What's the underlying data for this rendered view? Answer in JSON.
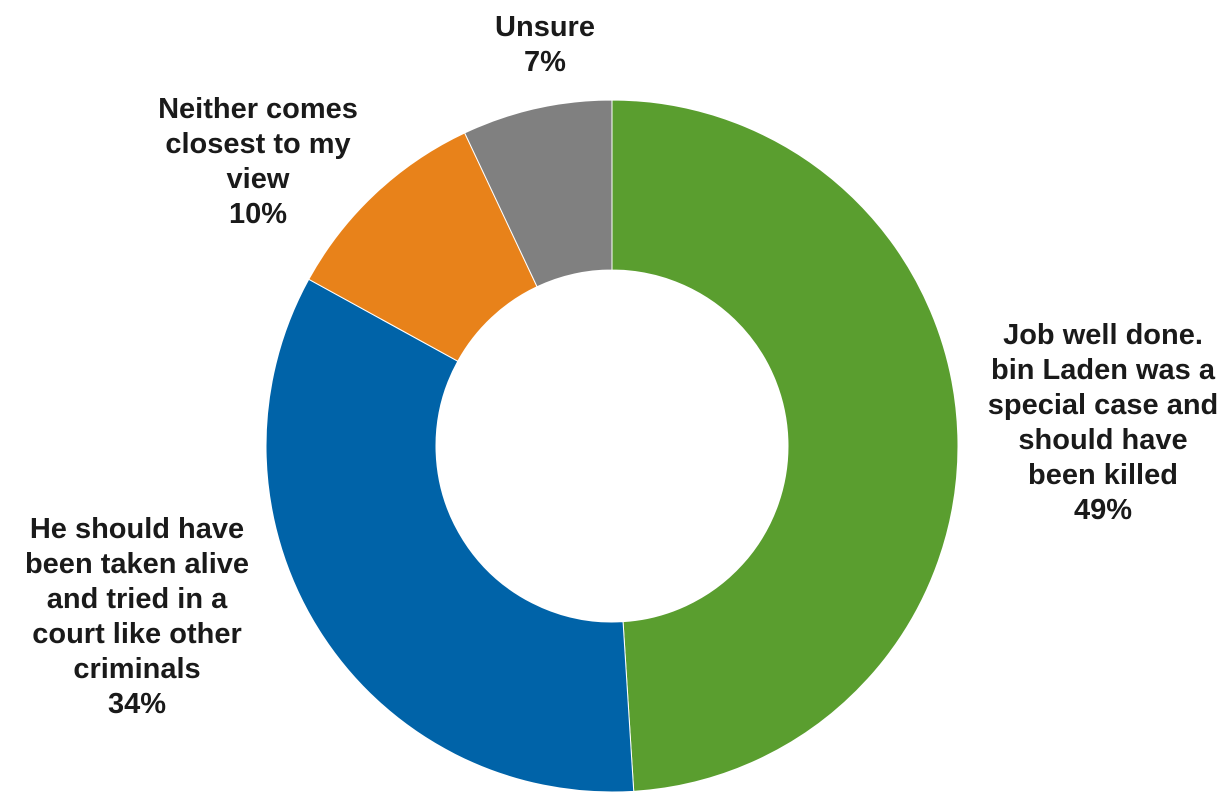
{
  "chart_data": {
    "type": "pie",
    "style": "donut",
    "title": "",
    "slices": [
      {
        "label_lines": [
          "Job well done.",
          "bin Laden was a",
          "special case and",
          "should have",
          "been killed"
        ],
        "value": 49,
        "value_label": "49%",
        "color": "#5a9e2f"
      },
      {
        "label_lines": [
          "He should have",
          "been taken alive",
          "and tried in a",
          "court like other",
          "criminals"
        ],
        "value": 34,
        "value_label": "34%",
        "color": "#0063a8"
      },
      {
        "label_lines": [
          "Neither comes",
          "closest to my",
          "view"
        ],
        "value": 10,
        "value_label": "10%",
        "color": "#e8821a"
      },
      {
        "label_lines": [
          "Unsure"
        ],
        "value": 7,
        "value_label": "7%",
        "color": "#808080"
      }
    ],
    "start_angle": "12 o'clock",
    "direction": "clockwise",
    "legend": "none"
  }
}
